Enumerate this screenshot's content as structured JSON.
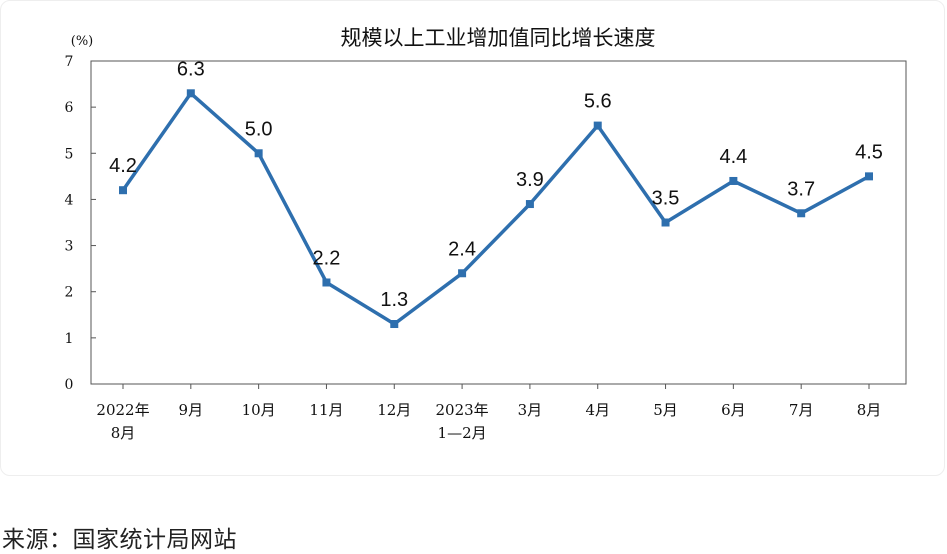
{
  "chart_data": {
    "type": "line",
    "title": "规模以上工业增加值同比增长速度",
    "unit_label": "(%)",
    "categories": [
      [
        "2022年",
        "8月"
      ],
      [
        "9月"
      ],
      [
        "10月"
      ],
      [
        "11月"
      ],
      [
        "12月"
      ],
      [
        "2023年",
        "1—2月"
      ],
      [
        "3月"
      ],
      [
        "4月"
      ],
      [
        "5月"
      ],
      [
        "6月"
      ],
      [
        "7月"
      ],
      [
        "8月"
      ]
    ],
    "series": [
      {
        "values": [
          4.2,
          6.3,
          5.0,
          2.2,
          1.3,
          2.4,
          3.9,
          5.6,
          3.5,
          4.4,
          3.7,
          4.5
        ]
      }
    ],
    "data_labels": [
      "4.2",
      "6.3",
      "5.0",
      "2.2",
      "1.3",
      "2.4",
      "3.9",
      "5.6",
      "3.5",
      "4.4",
      "3.7",
      "4.5"
    ],
    "ylim": [
      0,
      7
    ],
    "yticks": [
      "0",
      "1",
      "2",
      "3",
      "4",
      "5",
      "6",
      "7"
    ],
    "grid": false,
    "line_color": "#2e6fae"
  },
  "source_text": "来源：国家统计局网站"
}
